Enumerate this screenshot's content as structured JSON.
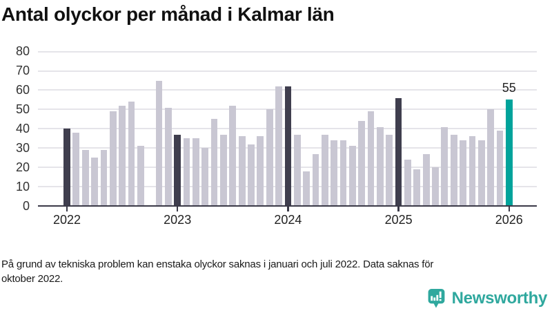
{
  "title": "Antal olyckor per månad i Kalmar län",
  "footnote_lines": [
    "På grund av tekniska problem kan enstaka olyckor saknas i januari och juli 2022. Data saknas för",
    "oktober 2022."
  ],
  "branding": {
    "name": "Newsworthy"
  },
  "colors": {
    "bar_normal": "#c9c7d3",
    "bar_highlight": "#3f3e4e",
    "bar_accent": "#00a39b",
    "gridline": "#e5e4e9",
    "axis": "#3a3947",
    "logo_teal": "#2fa89e"
  },
  "chart_data": {
    "type": "bar",
    "title": "Antal olyckor per månad i Kalmar län",
    "xlabel": "",
    "ylabel": "",
    "ylim": [
      0,
      80
    ],
    "y_ticks": [
      0,
      10,
      20,
      30,
      40,
      50,
      60,
      70,
      80
    ],
    "grid": "horizontal",
    "legend": "none",
    "x_unit": "month",
    "note": "dark bars mark January of each year; null = missing month (oktober 2022); last bar (jan 2026) is accent-colored and labeled",
    "years": [
      {
        "label": "2022",
        "values": [
          40,
          38,
          29,
          25,
          29,
          49,
          52,
          54,
          31,
          null,
          65,
          51
        ]
      },
      {
        "label": "2023",
        "values": [
          37,
          35,
          35,
          30,
          45,
          37,
          52,
          36,
          32,
          36,
          50,
          62
        ]
      },
      {
        "label": "2024",
        "values": [
          62,
          37,
          18,
          27,
          37,
          34,
          34,
          31,
          44,
          49,
          41,
          37
        ]
      },
      {
        "label": "2025",
        "values": [
          56,
          24,
          19,
          27,
          20,
          41,
          37,
          34,
          36,
          34,
          50,
          39
        ]
      },
      {
        "label": "2026",
        "values": [
          55
        ]
      }
    ],
    "latest_value_label": "55"
  }
}
